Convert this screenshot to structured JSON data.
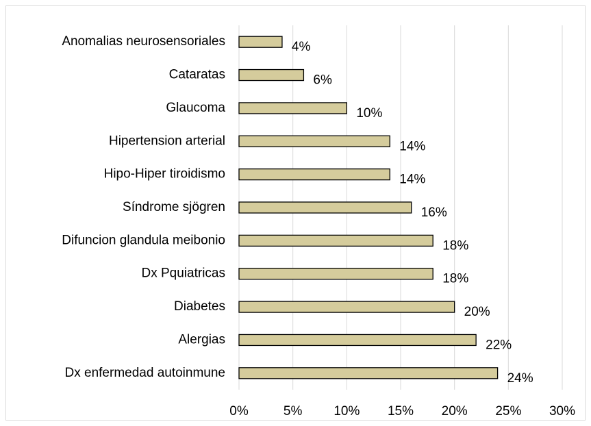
{
  "chart_data": {
    "type": "bar",
    "orientation": "horizontal",
    "categories": [
      "Anomalias neurosensoriales",
      "Cataratas",
      "Glaucoma",
      "Hipertension arterial",
      "Hipo-Hiper tiroidismo",
      "Síndrome sjögren",
      "Difuncion glandula meibonio",
      "Dx Pquiatricas",
      "Diabetes",
      "Alergias",
      "Dx enfermedad autoinmune"
    ],
    "values": [
      4,
      6,
      10,
      14,
      14,
      16,
      18,
      18,
      20,
      22,
      24
    ],
    "value_labels": [
      "4%",
      "6%",
      "10%",
      "14%",
      "14%",
      "16%",
      "18%",
      "18%",
      "20%",
      "22%",
      "24%"
    ],
    "color": "#d5cc9c",
    "xlim": [
      0,
      30
    ],
    "xticks": [
      {
        "value": 0,
        "label": "0%"
      },
      {
        "value": 5,
        "label": "5%"
      },
      {
        "value": 10,
        "label": "10%"
      },
      {
        "value": 15,
        "label": "15%"
      },
      {
        "value": 20,
        "label": "20%"
      },
      {
        "value": 25,
        "label": "25%"
      },
      {
        "value": 30,
        "label": "30%"
      }
    ],
    "grid": true
  }
}
